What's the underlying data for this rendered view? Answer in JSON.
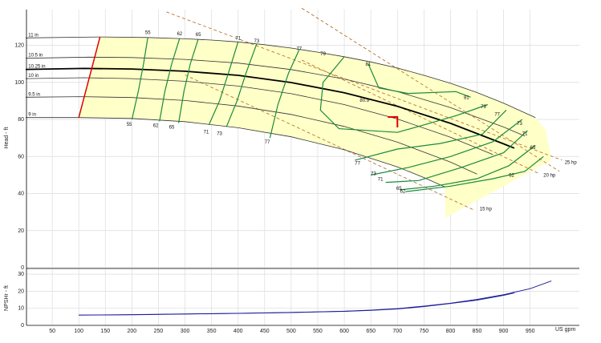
{
  "chart_data": [
    {
      "type": "line",
      "title": "",
      "xlabel": "US gpm",
      "ylabel": "Head - ft",
      "xlim": [
        0,
        1000
      ],
      "ylim": [
        0,
        130
      ],
      "x_ticks": [
        50,
        100,
        150,
        200,
        250,
        300,
        350,
        400,
        450,
        500,
        550,
        600,
        650,
        700,
        750,
        800,
        850,
        900,
        950
      ],
      "y_ticks": [
        0,
        20,
        40,
        60,
        80,
        100,
        120
      ],
      "grid": true,
      "region_color": "#ffffc8",
      "impeller_curves": [
        {
          "name": "11 in",
          "x": [
            0,
            140,
            230,
            300,
            350,
            400,
            450,
            500,
            550,
            600,
            650,
            700,
            750,
            800,
            850,
            900,
            960
          ],
          "y": [
            124,
            124.5,
            124.2,
            123.5,
            122.8,
            121.8,
            120.3,
            118.5,
            116.3,
            113.8,
            111,
            107.7,
            103.8,
            99.5,
            94.5,
            88.8,
            81
          ]
        },
        {
          "name": "10.5 in",
          "x": [
            0,
            120,
            200,
            300,
            400,
            500,
            600,
            700,
            800,
            900,
            940
          ],
          "y": [
            113,
            113.6,
            113.4,
            112.4,
            110.4,
            106.9,
            101.8,
            95,
            86.4,
            75.9,
            71
          ]
        },
        {
          "name": "10.25 in",
          "x": [
            0,
            110,
            200,
            300,
            400,
            500,
            600,
            700,
            800,
            900,
            920
          ],
          "y": [
            107,
            107.5,
            107.2,
            106,
            103.8,
            99.9,
            94.4,
            87.1,
            77.9,
            66.8,
            64.5
          ]
        },
        {
          "name": "10 in",
          "x": [
            0,
            110,
            200,
            300,
            400,
            500,
            600,
            700,
            800,
            880
          ],
          "y": [
            102,
            102.5,
            102,
            100.6,
            98,
            93.9,
            88,
            80.2,
            70.4,
            61
          ]
        },
        {
          "name": "9.5 in",
          "x": [
            0,
            105,
            200,
            300,
            400,
            500,
            600,
            700,
            800,
            850
          ],
          "y": [
            92,
            92.3,
            91.8,
            90.2,
            87.2,
            82.7,
            76.2,
            67.7,
            57,
            50.5
          ]
        },
        {
          "name": "9 in",
          "x": [
            0,
            100,
            200,
            300,
            400,
            500,
            600,
            700,
            750,
            790
          ],
          "y": [
            81,
            81,
            80.5,
            78.8,
            75.5,
            70.6,
            63.6,
            54.4,
            48.6,
            43.5
          ]
        }
      ],
      "design_curve": {
        "name": "10.25 in",
        "x": [
          0,
          110,
          200,
          300,
          400,
          500,
          600,
          700,
          800,
          900,
          920
        ],
        "y": [
          107,
          107.5,
          107.2,
          106,
          103.8,
          99.9,
          94.4,
          87.1,
          77.9,
          66.8,
          64.5
        ]
      },
      "operating_point": {
        "x": 700,
        "y": 80
      },
      "efficiency_labels": [
        {
          "text": "55",
          "x": 230,
          "y": 126
        },
        {
          "text": "62",
          "x": 290,
          "y": 125.5
        },
        {
          "text": "65",
          "x": 325,
          "y": 125
        },
        {
          "text": "71",
          "x": 400,
          "y": 123
        },
        {
          "text": "73",
          "x": 435,
          "y": 121.5
        },
        {
          "text": "77",
          "x": 515,
          "y": 117.5
        },
        {
          "text": "79",
          "x": 560,
          "y": 114.5
        },
        {
          "text": "81",
          "x": 645,
          "y": 109
        },
        {
          "text": "80.9",
          "x": 638,
          "y": 89.5
        },
        {
          "text": "81",
          "x": 830,
          "y": 91
        },
        {
          "text": "79",
          "x": 862,
          "y": 86
        },
        {
          "text": "77",
          "x": 888,
          "y": 82
        },
        {
          "text": "73",
          "x": 930,
          "y": 77
        },
        {
          "text": "71",
          "x": 940,
          "y": 71.5
        },
        {
          "text": "65",
          "x": 955,
          "y": 64
        },
        {
          "text": "62",
          "x": 915,
          "y": 49
        },
        {
          "text": "77",
          "x": 625,
          "y": 55.5
        },
        {
          "text": "73",
          "x": 655,
          "y": 50
        },
        {
          "text": "71",
          "x": 668,
          "y": 47
        },
        {
          "text": "65",
          "x": 703,
          "y": 42
        },
        {
          "text": "62",
          "x": 710,
          "y": 40.5
        },
        {
          "text": "55",
          "x": 195,
          "y": 76.5
        },
        {
          "text": "62",
          "x": 245,
          "y": 76
        },
        {
          "text": "65",
          "x": 275,
          "y": 75
        },
        {
          "text": "71",
          "x": 340,
          "y": 72.5
        },
        {
          "text": "73",
          "x": 365,
          "y": 71.5
        },
        {
          "text": "77",
          "x": 455,
          "y": 67
        }
      ],
      "power_labels": [
        {
          "text": "25 hp",
          "x": 1015,
          "y": 56
        },
        {
          "text": "20 hp",
          "x": 975,
          "y": 49
        },
        {
          "text": "15 hp",
          "x": 855,
          "y": 31
        }
      ]
    },
    {
      "type": "line",
      "title": "",
      "xlabel": "US gpm",
      "ylabel": "NPSHr - ft",
      "xlim": [
        0,
        1000
      ],
      "ylim": [
        0,
        32
      ],
      "y_ticks": [
        0,
        10,
        20,
        30
      ],
      "series": [
        {
          "x": [
            100,
            200,
            300,
            400,
            500,
            600,
            650,
            700,
            750,
            800,
            850,
            900,
            950,
            990
          ],
          "y": [
            6,
            6.3,
            6.7,
            7.1,
            7.6,
            8.3,
            8.9,
            9.8,
            11.3,
            13,
            15.2,
            18,
            21.5,
            26
          ]
        },
        {
          "x": [
            100,
            200,
            300,
            400,
            500,
            600,
            650,
            700,
            750,
            800,
            850,
            900,
            920
          ],
          "y": [
            6,
            6.2,
            6.6,
            7,
            7.5,
            8.2,
            8.8,
            9.6,
            11,
            12.8,
            14.8,
            17.6,
            19
          ]
        }
      ]
    }
  ]
}
